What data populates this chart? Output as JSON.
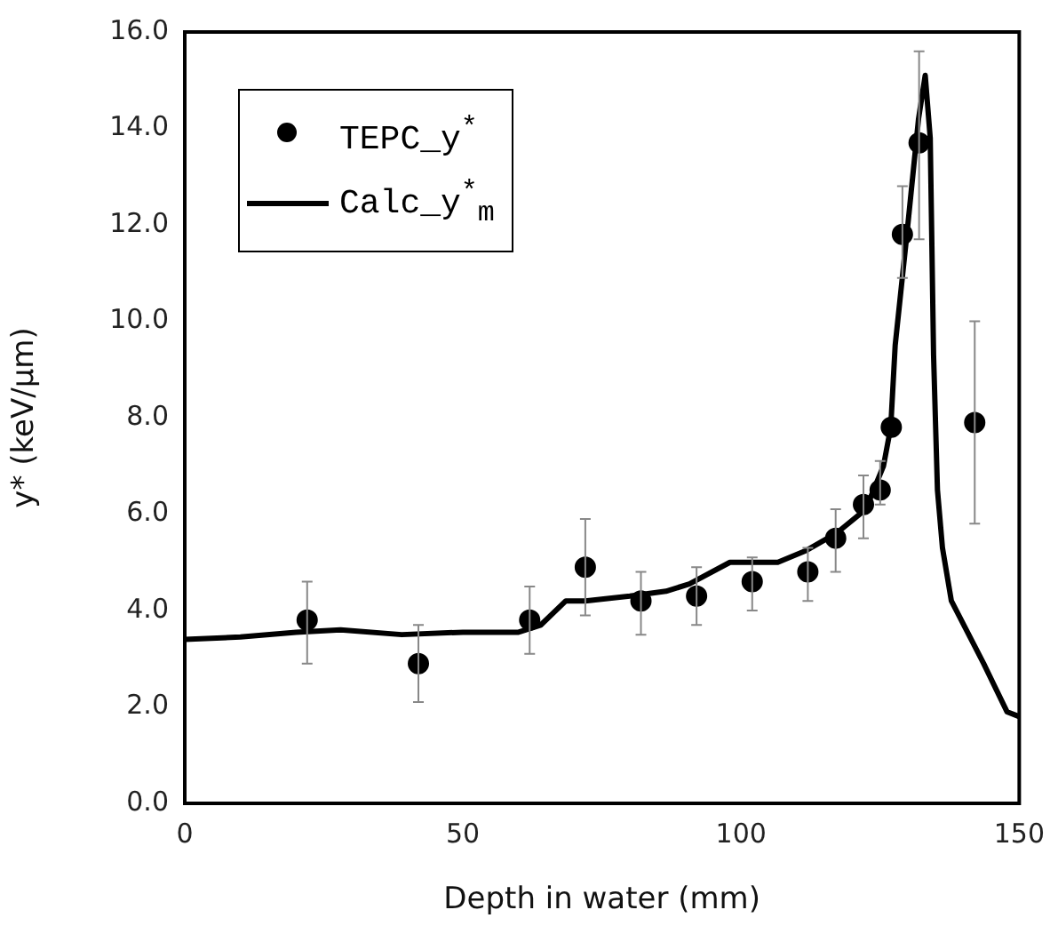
{
  "chart_data": {
    "type": "scatter",
    "xlabel": "Depth in water (mm)",
    "ylabel": "y* (keV/μm)",
    "xlim": [
      0,
      150
    ],
    "xticks": [
      0,
      50,
      100,
      150
    ],
    "ylim": [
      0,
      16
    ],
    "yticks": [
      {
        "value": 0,
        "label": "0.0"
      },
      {
        "value": 2,
        "label": "2.0"
      },
      {
        "value": 4,
        "label": "4.0"
      },
      {
        "value": 6,
        "label": "6.0"
      },
      {
        "value": 8,
        "label": "8.0"
      },
      {
        "value": 10,
        "label": "10.0"
      },
      {
        "value": 12,
        "label": "12.0"
      },
      {
        "value": 14,
        "label": "14.0"
      },
      {
        "value": 16,
        "label": "16.0"
      }
    ],
    "legend": "top left",
    "series": [
      {
        "name": "TEPC_y$^{*}$",
        "marker": "circle",
        "color": "#000000",
        "x": [
          22,
          42,
          62,
          72,
          82,
          92,
          102,
          112,
          117,
          122,
          125,
          127,
          129,
          132,
          142
        ],
        "values": [
          3.8,
          2.9,
          3.8,
          4.9,
          4.2,
          4.3,
          4.6,
          4.8,
          5.5,
          6.2,
          6.5,
          7.8,
          11.8,
          13.7,
          7.9
        ],
        "errors": [
          [
            2.9,
            4.6
          ],
          [
            2.1,
            3.7
          ],
          [
            3.1,
            4.5
          ],
          [
            3.9,
            5.9
          ],
          [
            3.5,
            4.8
          ],
          [
            3.7,
            4.9
          ],
          [
            4.0,
            5.1
          ],
          [
            4.2,
            5.3
          ],
          [
            4.8,
            6.1
          ],
          [
            5.5,
            6.8
          ],
          [
            6.2,
            7.1
          ],
          null,
          [
            10.9,
            12.8
          ],
          [
            11.7,
            15.6
          ],
          [
            5.8,
            10.0
          ]
        ]
      },
      {
        "name": "Calc_y$^{*}$$_{m}$",
        "type": "line",
        "marker": "none",
        "line_style": "solid",
        "color": "#000000",
        "x": [
          0,
          10,
          20,
          28,
          39,
          50,
          60,
          64,
          68.5,
          72,
          80,
          86.5,
          90.7,
          98,
          106.6,
          111.8,
          117.1,
          122.4,
          125.6,
          126.9,
          127.7,
          129.8,
          131.9,
          133.1,
          134,
          134.6,
          135.3,
          136.2,
          137.8,
          143.6,
          147.8,
          150
        ],
        "values": [
          3.4,
          3.45,
          3.55,
          3.6,
          3.5,
          3.55,
          3.55,
          3.7,
          4.2,
          4.2,
          4.3,
          4.4,
          4.55,
          5.0,
          5.0,
          5.25,
          5.6,
          6.1,
          7.0,
          7.8,
          9.5,
          11.8,
          14.2,
          15.1,
          13.8,
          9.3,
          6.5,
          5.3,
          4.2,
          2.9,
          1.9,
          1.8
        ]
      }
    ]
  }
}
